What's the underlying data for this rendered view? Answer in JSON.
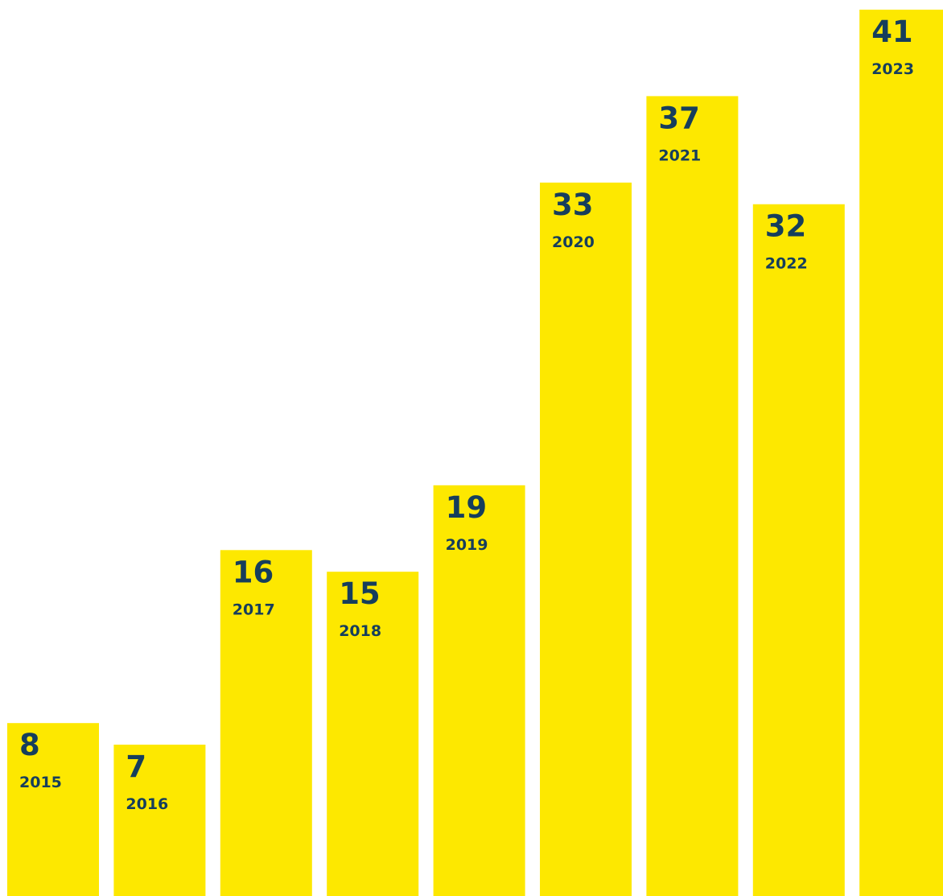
{
  "chart_data": {
    "type": "bar",
    "categories": [
      "2015",
      "2016",
      "2017",
      "2018",
      "2019",
      "2020",
      "2021",
      "2022",
      "2023"
    ],
    "values": [
      8,
      7,
      16,
      15,
      19,
      33,
      37,
      32,
      41
    ],
    "title": "",
    "xlabel": "",
    "ylabel": "",
    "ylim": [
      0,
      41
    ],
    "grid": false,
    "legend": "none",
    "colors": {
      "bar": "#FDE800",
      "label": "#163E5C",
      "background": "#FFFFFF"
    }
  }
}
